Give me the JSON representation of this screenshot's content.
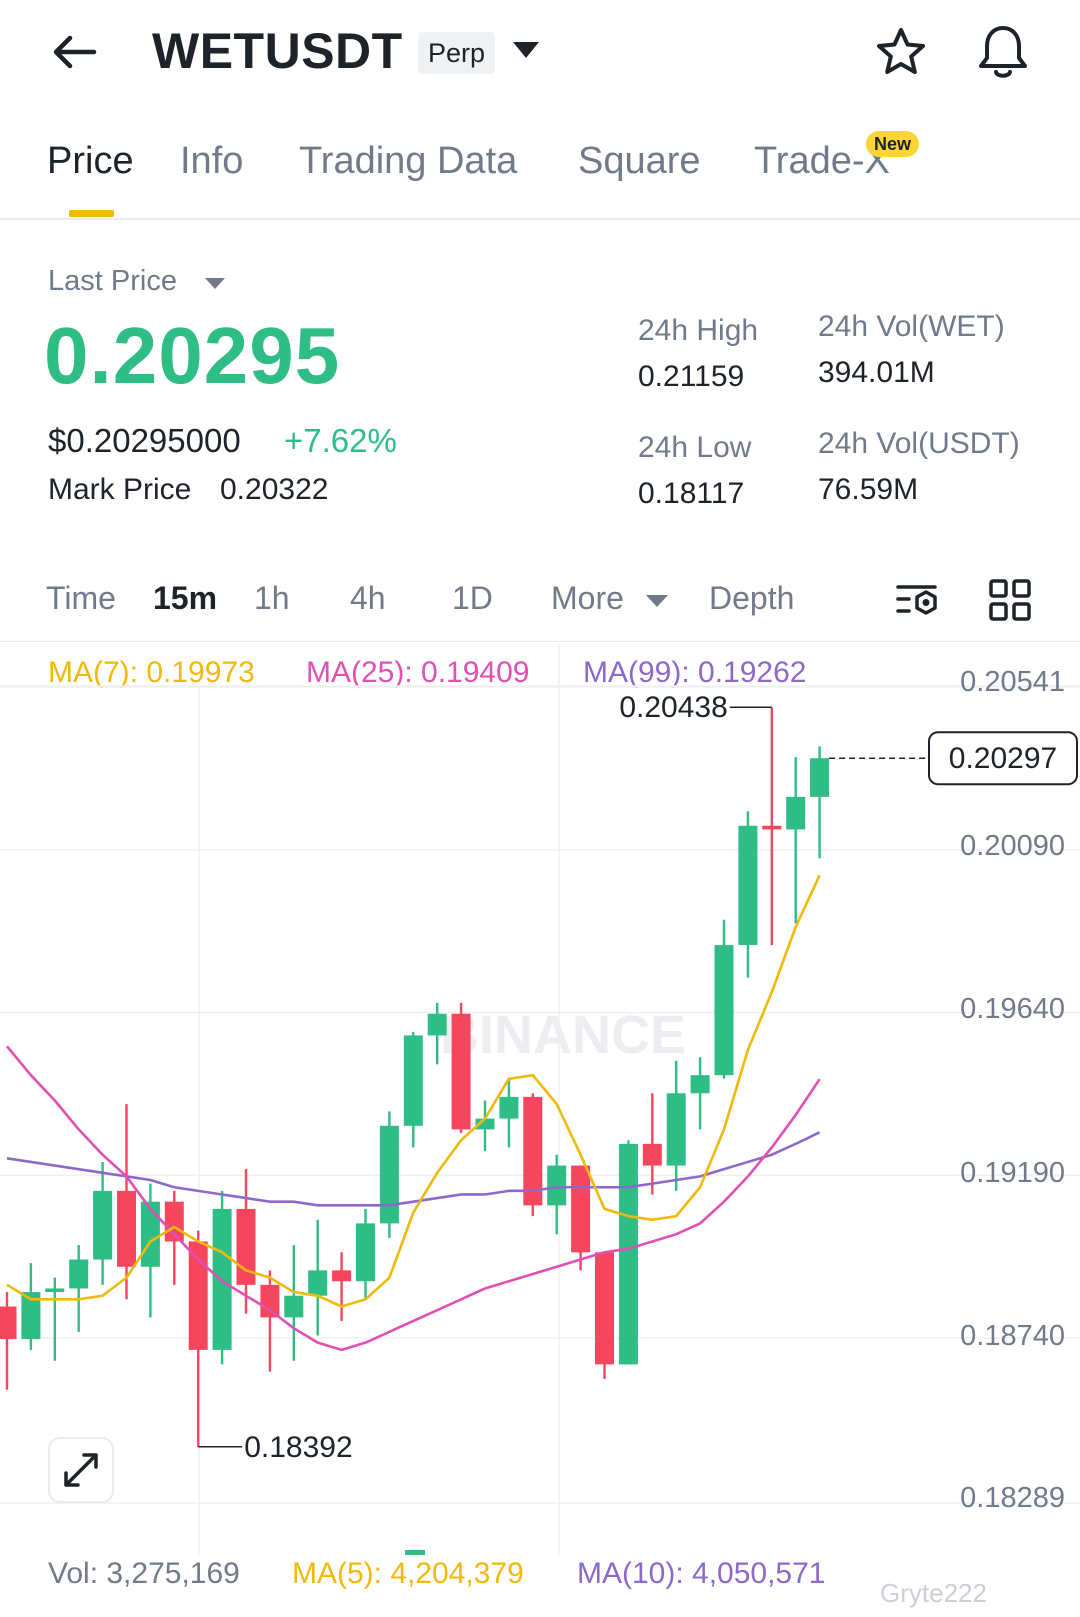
{
  "header": {
    "symbol": "WETUSDT",
    "contract_type": "Perp"
  },
  "tabs": [
    {
      "label": "Price",
      "active": true
    },
    {
      "label": "Info",
      "active": false
    },
    {
      "label": "Trading Data",
      "active": false
    },
    {
      "label": "Square",
      "active": false
    },
    {
      "label": "Trade-X",
      "active": false,
      "badge": "New"
    }
  ],
  "ticker": {
    "last_price_label": "Last Price",
    "last_price": "0.20295",
    "usd_price": "$0.20295000",
    "change_pct": "+7.62%",
    "mark_price_label": "Mark Price",
    "mark_price": "0.20322",
    "high_label": "24h High",
    "high": "0.21159",
    "low_label": "24h Low",
    "low": "0.18117",
    "vol_base_label": "24h Vol(WET)",
    "vol_base": "394.01M",
    "vol_quote_label": "24h Vol(USDT)",
    "vol_quote": "76.59M"
  },
  "intervals": {
    "time_label": "Time",
    "items": [
      "15m",
      "1h",
      "4h",
      "1D"
    ],
    "active": "15m",
    "more_label": "More",
    "depth_label": "Depth"
  },
  "indicators": {
    "ma7": "MA(7): 0.19973",
    "ma25": "MA(25): 0.19409",
    "ma99": "MA(99): 0.19262",
    "vol": "Vol: 3,275,169",
    "vol_ma5": "MA(5): 4,204,379",
    "vol_ma10": "MA(10): 4,050,571"
  },
  "colors": {
    "up": "#2ebd85",
    "down": "#f6465d",
    "ma7": "#f0b90b",
    "ma25": "#e04fb3",
    "ma99": "#8e68c9",
    "accent": "#fcd535"
  },
  "chart_data": {
    "type": "candlestick",
    "y_ticks": [
      "0.20541",
      "0.20090",
      "0.19640",
      "0.19190",
      "0.18740",
      "0.18289"
    ],
    "y_tick_values": [
      0.20541,
      0.2009,
      0.1964,
      0.1919,
      0.1874,
      0.18289
    ],
    "ylim": [
      0.18289,
      0.20541
    ],
    "current_price": "0.20297",
    "current_price_value": 0.20297,
    "high_marker": "0.20438",
    "high_marker_value": 0.20438,
    "low_marker": "0.18392",
    "low_marker_value": 0.18392,
    "candles": [
      {
        "o": 0.1878,
        "h": 0.1882,
        "l": 0.1855,
        "c": 0.1869
      },
      {
        "o": 0.1869,
        "h": 0.189,
        "l": 0.1866,
        "c": 0.1882
      },
      {
        "o": 0.1882,
        "h": 0.1886,
        "l": 0.1863,
        "c": 0.1883
      },
      {
        "o": 0.1883,
        "h": 0.1895,
        "l": 0.1871,
        "c": 0.1891
      },
      {
        "o": 0.1891,
        "h": 0.1918,
        "l": 0.1884,
        "c": 0.191
      },
      {
        "o": 0.191,
        "h": 0.1934,
        "l": 0.188,
        "c": 0.1889
      },
      {
        "o": 0.1889,
        "h": 0.1912,
        "l": 0.1875,
        "c": 0.1907
      },
      {
        "o": 0.1907,
        "h": 0.191,
        "l": 0.1884,
        "c": 0.1896
      },
      {
        "o": 0.1896,
        "h": 0.1899,
        "l": 0.18392,
        "c": 0.1866
      },
      {
        "o": 0.1866,
        "h": 0.191,
        "l": 0.1862,
        "c": 0.1905
      },
      {
        "o": 0.1905,
        "h": 0.1916,
        "l": 0.1876,
        "c": 0.1884
      },
      {
        "o": 0.1884,
        "h": 0.1888,
        "l": 0.186,
        "c": 0.1875
      },
      {
        "o": 0.1875,
        "h": 0.1895,
        "l": 0.1863,
        "c": 0.1881
      },
      {
        "o": 0.1881,
        "h": 0.1902,
        "l": 0.187,
        "c": 0.1888
      },
      {
        "o": 0.1888,
        "h": 0.1893,
        "l": 0.1874,
        "c": 0.1885
      },
      {
        "o": 0.1885,
        "h": 0.1905,
        "l": 0.188,
        "c": 0.1901
      },
      {
        "o": 0.1901,
        "h": 0.1932,
        "l": 0.1897,
        "c": 0.1928
      },
      {
        "o": 0.1928,
        "h": 0.1954,
        "l": 0.1922,
        "c": 0.1953
      },
      {
        "o": 0.1953,
        "h": 0.1962,
        "l": 0.1945,
        "c": 0.1959
      },
      {
        "o": 0.1959,
        "h": 0.1962,
        "l": 0.1926,
        "c": 0.1927
      },
      {
        "o": 0.1927,
        "h": 0.1935,
        "l": 0.1921,
        "c": 0.193
      },
      {
        "o": 0.193,
        "h": 0.1941,
        "l": 0.1922,
        "c": 0.1936
      },
      {
        "o": 0.1936,
        "h": 0.1937,
        "l": 0.1903,
        "c": 0.1906
      },
      {
        "o": 0.1906,
        "h": 0.192,
        "l": 0.1898,
        "c": 0.1917
      },
      {
        "o": 0.1917,
        "h": 0.1917,
        "l": 0.1888,
        "c": 0.1893
      },
      {
        "o": 0.1893,
        "h": 0.1893,
        "l": 0.1858,
        "c": 0.1862
      },
      {
        "o": 0.1862,
        "h": 0.1924,
        "l": 0.1862,
        "c": 0.1923
      },
      {
        "o": 0.1923,
        "h": 0.1937,
        "l": 0.1909,
        "c": 0.1917
      },
      {
        "o": 0.1917,
        "h": 0.1946,
        "l": 0.191,
        "c": 0.1937
      },
      {
        "o": 0.1937,
        "h": 0.1947,
        "l": 0.1927,
        "c": 0.1942
      },
      {
        "o": 0.1942,
        "h": 0.1985,
        "l": 0.1941,
        "c": 0.1978
      },
      {
        "o": 0.1978,
        "h": 0.2015,
        "l": 0.1969,
        "c": 0.2011
      },
      {
        "o": 0.2011,
        "h": 0.20438,
        "l": 0.1978,
        "c": 0.201
      },
      {
        "o": 0.201,
        "h": 0.203,
        "l": 0.1984,
        "c": 0.2019
      },
      {
        "o": 0.2019,
        "h": 0.2033,
        "l": 0.2002,
        "c": 0.20297
      }
    ],
    "ma7_values": [
      0.1884,
      0.188,
      0.188,
      0.188,
      0.1881,
      0.1886,
      0.1896,
      0.19,
      0.1896,
      0.1893,
      0.1888,
      0.1886,
      0.1882,
      0.1881,
      0.1878,
      0.188,
      0.1886,
      0.1904,
      0.1915,
      0.1924,
      0.193,
      0.1941,
      0.1942,
      0.1934,
      0.192,
      0.1905,
      0.1903,
      0.1902,
      0.1903,
      0.1911,
      0.1927,
      0.1949,
      0.1965,
      0.1983,
      0.19973
    ],
    "ma25_values": [
      0.195,
      0.1942,
      0.1935,
      0.1927,
      0.192,
      0.1914,
      0.1905,
      0.1898,
      0.1891,
      0.1885,
      0.1881,
      0.1877,
      0.1872,
      0.1868,
      0.1866,
      0.1868,
      0.1871,
      0.1874,
      0.1877,
      0.188,
      0.1883,
      0.1885,
      0.1887,
      0.1889,
      0.1891,
      0.1893,
      0.1894,
      0.1896,
      0.1898,
      0.1901,
      0.1907,
      0.1914,
      0.1922,
      0.1931,
      0.19409
    ],
    "ma99_values": [
      0.1919,
      0.1918,
      0.1917,
      0.1916,
      0.1915,
      0.1914,
      0.1913,
      0.1911,
      0.191,
      0.1909,
      0.1908,
      0.1907,
      0.1907,
      0.1906,
      0.1906,
      0.1906,
      0.1906,
      0.1907,
      0.1908,
      0.1909,
      0.1909,
      0.191,
      0.191,
      0.1911,
      0.1911,
      0.1911,
      0.1911,
      0.1912,
      0.1913,
      0.1914,
      0.1916,
      0.1918,
      0.192,
      0.1923,
      0.19262
    ]
  },
  "watermark": "Gryte222"
}
